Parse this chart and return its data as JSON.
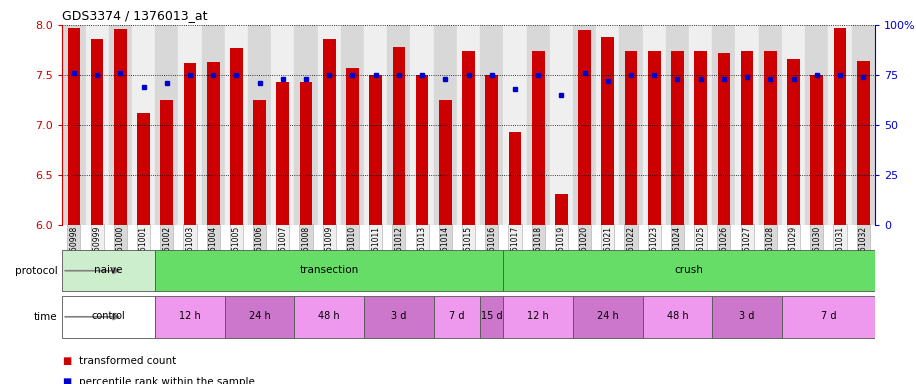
{
  "title": "GDS3374 / 1376013_at",
  "samples": [
    "GSM250998",
    "GSM250999",
    "GSM251000",
    "GSM251001",
    "GSM251002",
    "GSM251003",
    "GSM251004",
    "GSM251005",
    "GSM251006",
    "GSM251007",
    "GSM251008",
    "GSM251009",
    "GSM251010",
    "GSM251011",
    "GSM251012",
    "GSM251013",
    "GSM251014",
    "GSM251015",
    "GSM251016",
    "GSM251017",
    "GSM251018",
    "GSM251019",
    "GSM251020",
    "GSM251021",
    "GSM251022",
    "GSM251023",
    "GSM251024",
    "GSM251025",
    "GSM251026",
    "GSM251027",
    "GSM251028",
    "GSM251029",
    "GSM251030",
    "GSM251031",
    "GSM251032"
  ],
  "bar_values": [
    7.97,
    7.86,
    7.96,
    7.12,
    7.25,
    7.62,
    7.63,
    7.77,
    7.25,
    7.43,
    7.43,
    7.86,
    7.57,
    7.5,
    7.78,
    7.5,
    7.25,
    7.74,
    7.5,
    6.93,
    7.74,
    6.31,
    7.95,
    7.88,
    7.74,
    7.74,
    7.74,
    7.74,
    7.72,
    7.74,
    7.74,
    7.66,
    7.5,
    7.97,
    7.64
  ],
  "percentile_values": [
    76,
    75,
    76,
    69,
    71,
    75,
    75,
    75,
    71,
    73,
    73,
    75,
    75,
    75,
    75,
    75,
    73,
    75,
    75,
    68,
    75,
    65,
    76,
    72,
    75,
    75,
    73,
    73,
    73,
    74,
    73,
    73,
    75,
    75,
    74
  ],
  "ylim_left": [
    6.0,
    8.0
  ],
  "ylim_right": [
    0,
    100
  ],
  "bar_color": "#cc0000",
  "dot_color": "#0000cc",
  "yticks_left": [
    6.0,
    6.5,
    7.0,
    7.5,
    8.0
  ],
  "yticks_right": [
    0,
    25,
    50,
    75,
    100
  ],
  "col_colors_even": "#d8d8d8",
  "col_colors_odd": "#efefef",
  "protocol_groups": [
    {
      "label": "naive",
      "start": 0,
      "end": 4,
      "color": "#cceecc"
    },
    {
      "label": "transection",
      "start": 4,
      "end": 19,
      "color": "#66dd66"
    },
    {
      "label": "crush",
      "start": 19,
      "end": 35,
      "color": "#66dd66"
    }
  ],
  "time_groups": [
    {
      "label": "control",
      "start": 0,
      "end": 4,
      "color": "#ffffff"
    },
    {
      "label": "12 h",
      "start": 4,
      "end": 7,
      "color": "#ee99ee"
    },
    {
      "label": "24 h",
      "start": 7,
      "end": 10,
      "color": "#cc77cc"
    },
    {
      "label": "48 h",
      "start": 10,
      "end": 13,
      "color": "#ee99ee"
    },
    {
      "label": "3 d",
      "start": 13,
      "end": 16,
      "color": "#cc77cc"
    },
    {
      "label": "7 d",
      "start": 16,
      "end": 18,
      "color": "#ee99ee"
    },
    {
      "label": "15 d",
      "start": 18,
      "end": 19,
      "color": "#cc77cc"
    },
    {
      "label": "12 h",
      "start": 19,
      "end": 22,
      "color": "#ee99ee"
    },
    {
      "label": "24 h",
      "start": 22,
      "end": 25,
      "color": "#cc77cc"
    },
    {
      "label": "48 h",
      "start": 25,
      "end": 28,
      "color": "#ee99ee"
    },
    {
      "label": "3 d",
      "start": 28,
      "end": 31,
      "color": "#cc77cc"
    },
    {
      "label": "7 d",
      "start": 31,
      "end": 35,
      "color": "#ee99ee"
    }
  ],
  "legend_items": [
    {
      "label": "transformed count",
      "color": "#cc0000"
    },
    {
      "label": "percentile rank within the sample",
      "color": "#0000cc"
    }
  ]
}
